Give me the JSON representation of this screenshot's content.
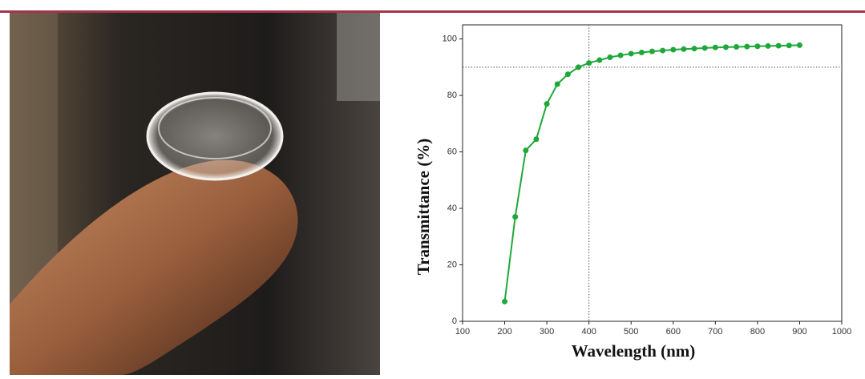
{
  "chart_data": {
    "type": "line",
    "x_label": "Wavelength (nm)",
    "y_label": "Transmittance (%)",
    "xlim": [
      100,
      1000
    ],
    "xticks": [
      100,
      200,
      300,
      400,
      500,
      600,
      700,
      800,
      900,
      1000
    ],
    "ylim": [
      0,
      105
    ],
    "yticks": [
      0,
      20,
      40,
      60,
      80,
      100
    ],
    "reference_lines": {
      "y": 90,
      "x": 400
    },
    "series": [
      {
        "color": "#1fa83a",
        "x": [
          200,
          225,
          250,
          275,
          300,
          325,
          350,
          375,
          400,
          425,
          450,
          475,
          500,
          525,
          550,
          575,
          600,
          625,
          650,
          675,
          700,
          725,
          750,
          775,
          800,
          825,
          850,
          875,
          900
        ],
        "values": [
          7,
          37,
          60.5,
          64.5,
          77,
          84,
          87.5,
          90,
          91.5,
          92.5,
          93.5,
          94.2,
          94.8,
          95.2,
          95.6,
          95.9,
          96.2,
          96.4,
          96.6,
          96.8,
          97,
          97.1,
          97.2,
          97.3,
          97.4,
          97.5,
          97.6,
          97.7,
          97.8
        ]
      }
    ]
  }
}
